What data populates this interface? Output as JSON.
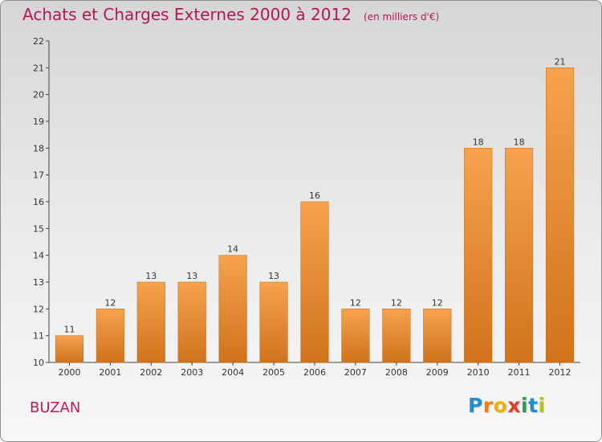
{
  "title": "Achats et Charges Externes 2000 à 2012",
  "unit_note": "(en milliers d'€)",
  "commune": "BUZAN",
  "logo": {
    "letters": [
      "P",
      "r",
      "o",
      "x",
      "i",
      "t",
      "i"
    ],
    "colors": [
      "#1b8fd1",
      "#ef7d1a",
      "#e8b10f",
      "#e23b2a",
      "#2c9a48",
      "#1b8fd1",
      "#b6c21a"
    ]
  },
  "colors": {
    "title": "#b5165a",
    "bar_top": "#f6a24e",
    "bar_bottom": "#d0731c",
    "axis": "#444444"
  },
  "chart_data": {
    "type": "bar",
    "categories": [
      "2000",
      "2001",
      "2002",
      "2003",
      "2004",
      "2005",
      "2006",
      "2007",
      "2008",
      "2009",
      "2010",
      "2011",
      "2012"
    ],
    "values": [
      11,
      12,
      13,
      13,
      14,
      13,
      16,
      12,
      12,
      12,
      18,
      18,
      21
    ],
    "ylim": [
      10,
      22
    ],
    "yticks": [
      10,
      11,
      12,
      13,
      14,
      15,
      16,
      17,
      18,
      19,
      20,
      21,
      22
    ],
    "grid": false,
    "legend": "none"
  }
}
